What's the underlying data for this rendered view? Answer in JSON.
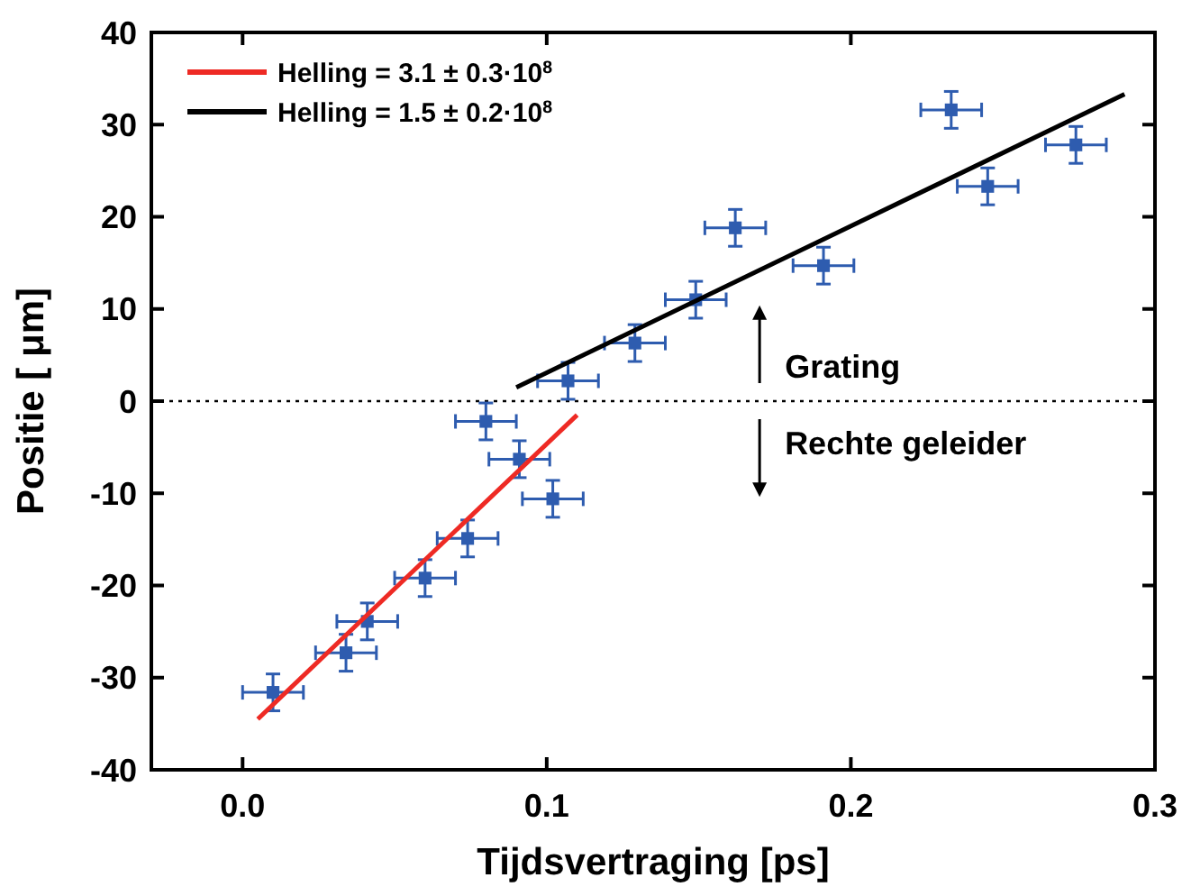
{
  "chart_data": {
    "type": "scatter",
    "xlabel": "Tijdsvertraging [ps]",
    "ylabel": "Positie [ μm]",
    "xlim": [
      -0.03,
      0.3
    ],
    "ylim": [
      -40,
      40
    ],
    "xticks": [
      {
        "value": 0,
        "label": "0.0"
      },
      0.1,
      0.2,
      0.3
    ],
    "yticks": [
      -40,
      -30,
      -20,
      -10,
      0,
      10,
      20,
      30,
      40
    ],
    "grid": false,
    "legend": "top left",
    "series": [
      {
        "marker": "square",
        "color": "#2e5caf",
        "x": [
          0.01,
          0.034,
          0.041,
          0.06,
          0.074,
          0.08,
          0.091,
          0.102,
          0.107,
          0.129,
          0.149,
          0.162,
          0.191,
          0.233,
          0.245,
          0.274
        ],
        "values": [
          -31.6,
          -27.3,
          -23.9,
          -19.2,
          -14.9,
          -2.2,
          -6.3,
          -10.6,
          2.2,
          6.3,
          11.0,
          18.8,
          14.7,
          31.6,
          23.3,
          27.8
        ],
        "errors": [
          2,
          2,
          2,
          2,
          2,
          2,
          2,
          2,
          2,
          2,
          2,
          2,
          2,
          2,
          2,
          2
        ],
        "xerrors": [
          0.01,
          0.01,
          0.01,
          0.01,
          0.01,
          0.01,
          0.01,
          0.01,
          0.01,
          0.01,
          0.01,
          0.01,
          0.01,
          0.01,
          0.01,
          0.01
        ]
      },
      {
        "type": "line",
        "name": "Helling = 3.1 ± 0.3·10$^{8}$",
        "color": "#ee2a24",
        "x": [
          0.005,
          0.11
        ],
        "values": [
          -34.5,
          -1.5
        ]
      },
      {
        "type": "line",
        "name": "Helling = 1.5 ± 0.2·10$^{8}$",
        "color": "#000000",
        "x": [
          0.09,
          0.29
        ],
        "values": [
          1.5,
          33.3
        ]
      }
    ],
    "ref_lines": [
      {
        "axis": "y",
        "value": 0,
        "line_style": "dotted",
        "color": "#000000"
      }
    ],
    "annotations": [
      "Grating",
      "Rechte geleider"
    ]
  }
}
